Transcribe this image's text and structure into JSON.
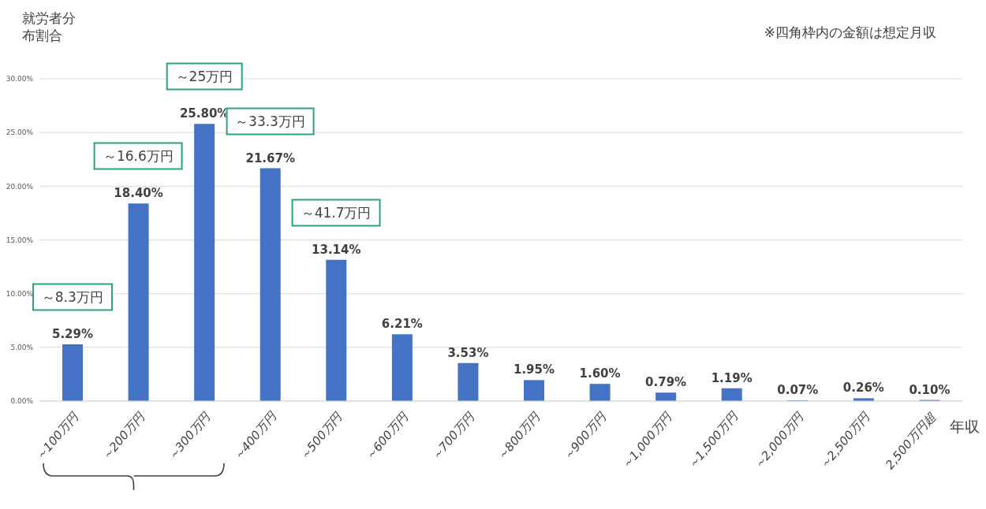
{
  "chart_data": {
    "type": "bar",
    "ylabel": "就労者分布割合",
    "xlabel": "年収",
    "categories": [
      "～100万円",
      "～200万円",
      "～300万円",
      "～400万円",
      "～500万円",
      "～600万円",
      "～700万円",
      "～800万円",
      "～900万円",
      "～1,000万円",
      "～1,500万円",
      "～2,000万円",
      "～2,500万円",
      "2,500万円超"
    ],
    "values": [
      5.29,
      18.4,
      25.8,
      21.67,
      13.14,
      6.21,
      3.53,
      1.95,
      1.6,
      0.79,
      1.19,
      0.07,
      0.26,
      0.1
    ],
    "value_labels": [
      "5.29%",
      "18.40%",
      "25.80%",
      "21.67%",
      "13.14%",
      "6.21%",
      "3.53%",
      "1.95%",
      "1.60%",
      "0.79%",
      "1.19%",
      "0.07%",
      "0.26%",
      "0.10%"
    ],
    "color": "#4472c4",
    "ylim": [
      0,
      30
    ],
    "yticks": [
      {
        "value": 0,
        "label": "0.00%"
      },
      {
        "value": 5,
        "label": "5.00%"
      },
      {
        "value": 10,
        "label": "10.00%"
      },
      {
        "value": 15,
        "label": "15.00%"
      },
      {
        "value": 20,
        "label": "20.00%"
      },
      {
        "value": 25,
        "label": "25.00%"
      },
      {
        "value": 30,
        "label": "30.00%"
      }
    ],
    "grid": "y",
    "annotations": [
      "※四角枠内の金額は想定月収",
      "～8.3万円",
      "～16.6万円",
      "～25万円",
      "～33.3万円",
      "～41.7万円"
    ]
  }
}
